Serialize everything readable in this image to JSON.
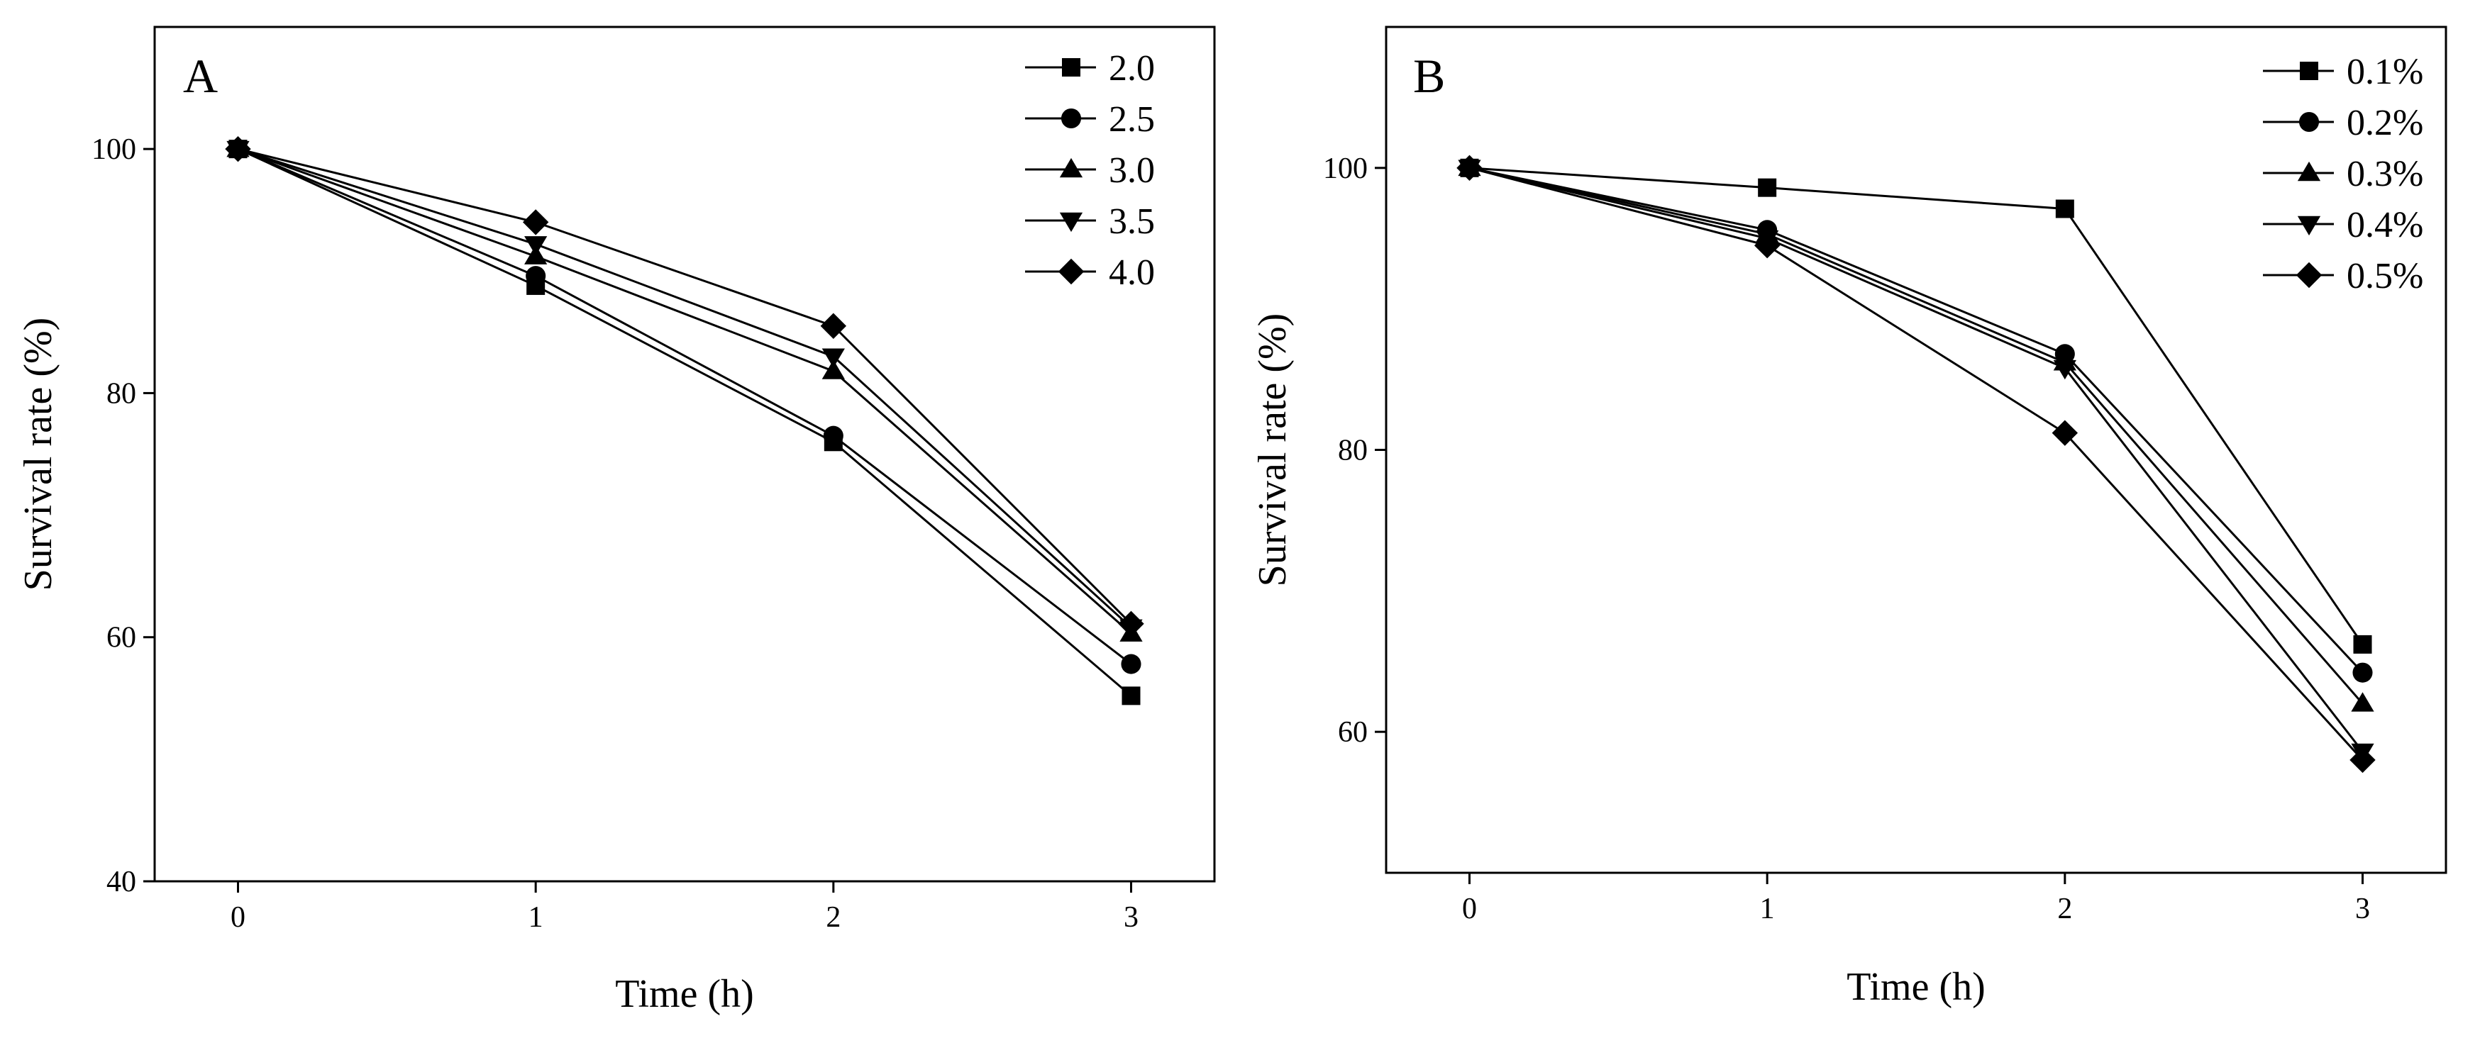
{
  "figure": {
    "background": "#ffffff",
    "ink": "#000000"
  },
  "chart_data": [
    {
      "type": "line",
      "panel_label": "A",
      "xlabel": "Time (h)",
      "ylabel": "Survival rate (%)",
      "x": [
        0,
        1,
        2,
        3
      ],
      "x_ticks": [
        "0",
        "1",
        "2",
        "3"
      ],
      "xlim": [
        -0.28,
        3.28
      ],
      "ylim": [
        40,
        110
      ],
      "y_ticks": [
        "40",
        "60",
        "80",
        "100"
      ],
      "y_tick_values": [
        40,
        60,
        80,
        100
      ],
      "legend_position": "top-right",
      "series": [
        {
          "name": "2.0",
          "marker": "square",
          "values": [
            100,
            88.8,
            76.0,
            55.2
          ]
        },
        {
          "name": "2.5",
          "marker": "circle",
          "values": [
            100,
            89.6,
            76.5,
            57.8
          ]
        },
        {
          "name": "3.0",
          "marker": "triangle-up",
          "values": [
            100,
            91.2,
            81.8,
            60.3
          ]
        },
        {
          "name": "3.5",
          "marker": "triangle-down",
          "values": [
            100,
            92.2,
            83.0,
            60.8
          ]
        },
        {
          "name": "4.0",
          "marker": "diamond",
          "values": [
            100,
            94.0,
            85.5,
            61.1
          ]
        }
      ]
    },
    {
      "type": "line",
      "panel_label": "B",
      "xlabel": "Time (h)",
      "ylabel": "Survival rate (%)",
      "x": [
        0,
        1,
        2,
        3
      ],
      "x_ticks": [
        "0",
        "1",
        "2",
        "3"
      ],
      "xlim": [
        -0.28,
        3.28
      ],
      "ylim": [
        50,
        110
      ],
      "y_ticks": [
        "60",
        "80",
        "100"
      ],
      "y_tick_values": [
        60,
        80,
        100
      ],
      "legend_position": "top-right",
      "series": [
        {
          "name": "0.1%",
          "marker": "square",
          "values": [
            100,
            98.6,
            97.1,
            66.2
          ]
        },
        {
          "name": "0.2%",
          "marker": "circle",
          "values": [
            100,
            95.6,
            86.8,
            64.2
          ]
        },
        {
          "name": "0.3%",
          "marker": "triangle-up",
          "values": [
            100,
            95.3,
            86.2,
            62.0
          ]
        },
        {
          "name": "0.4%",
          "marker": "triangle-down",
          "values": [
            100,
            95.0,
            85.8,
            58.6
          ]
        },
        {
          "name": "0.5%",
          "marker": "diamond",
          "values": [
            100,
            94.5,
            81.2,
            58.0
          ]
        }
      ]
    }
  ]
}
